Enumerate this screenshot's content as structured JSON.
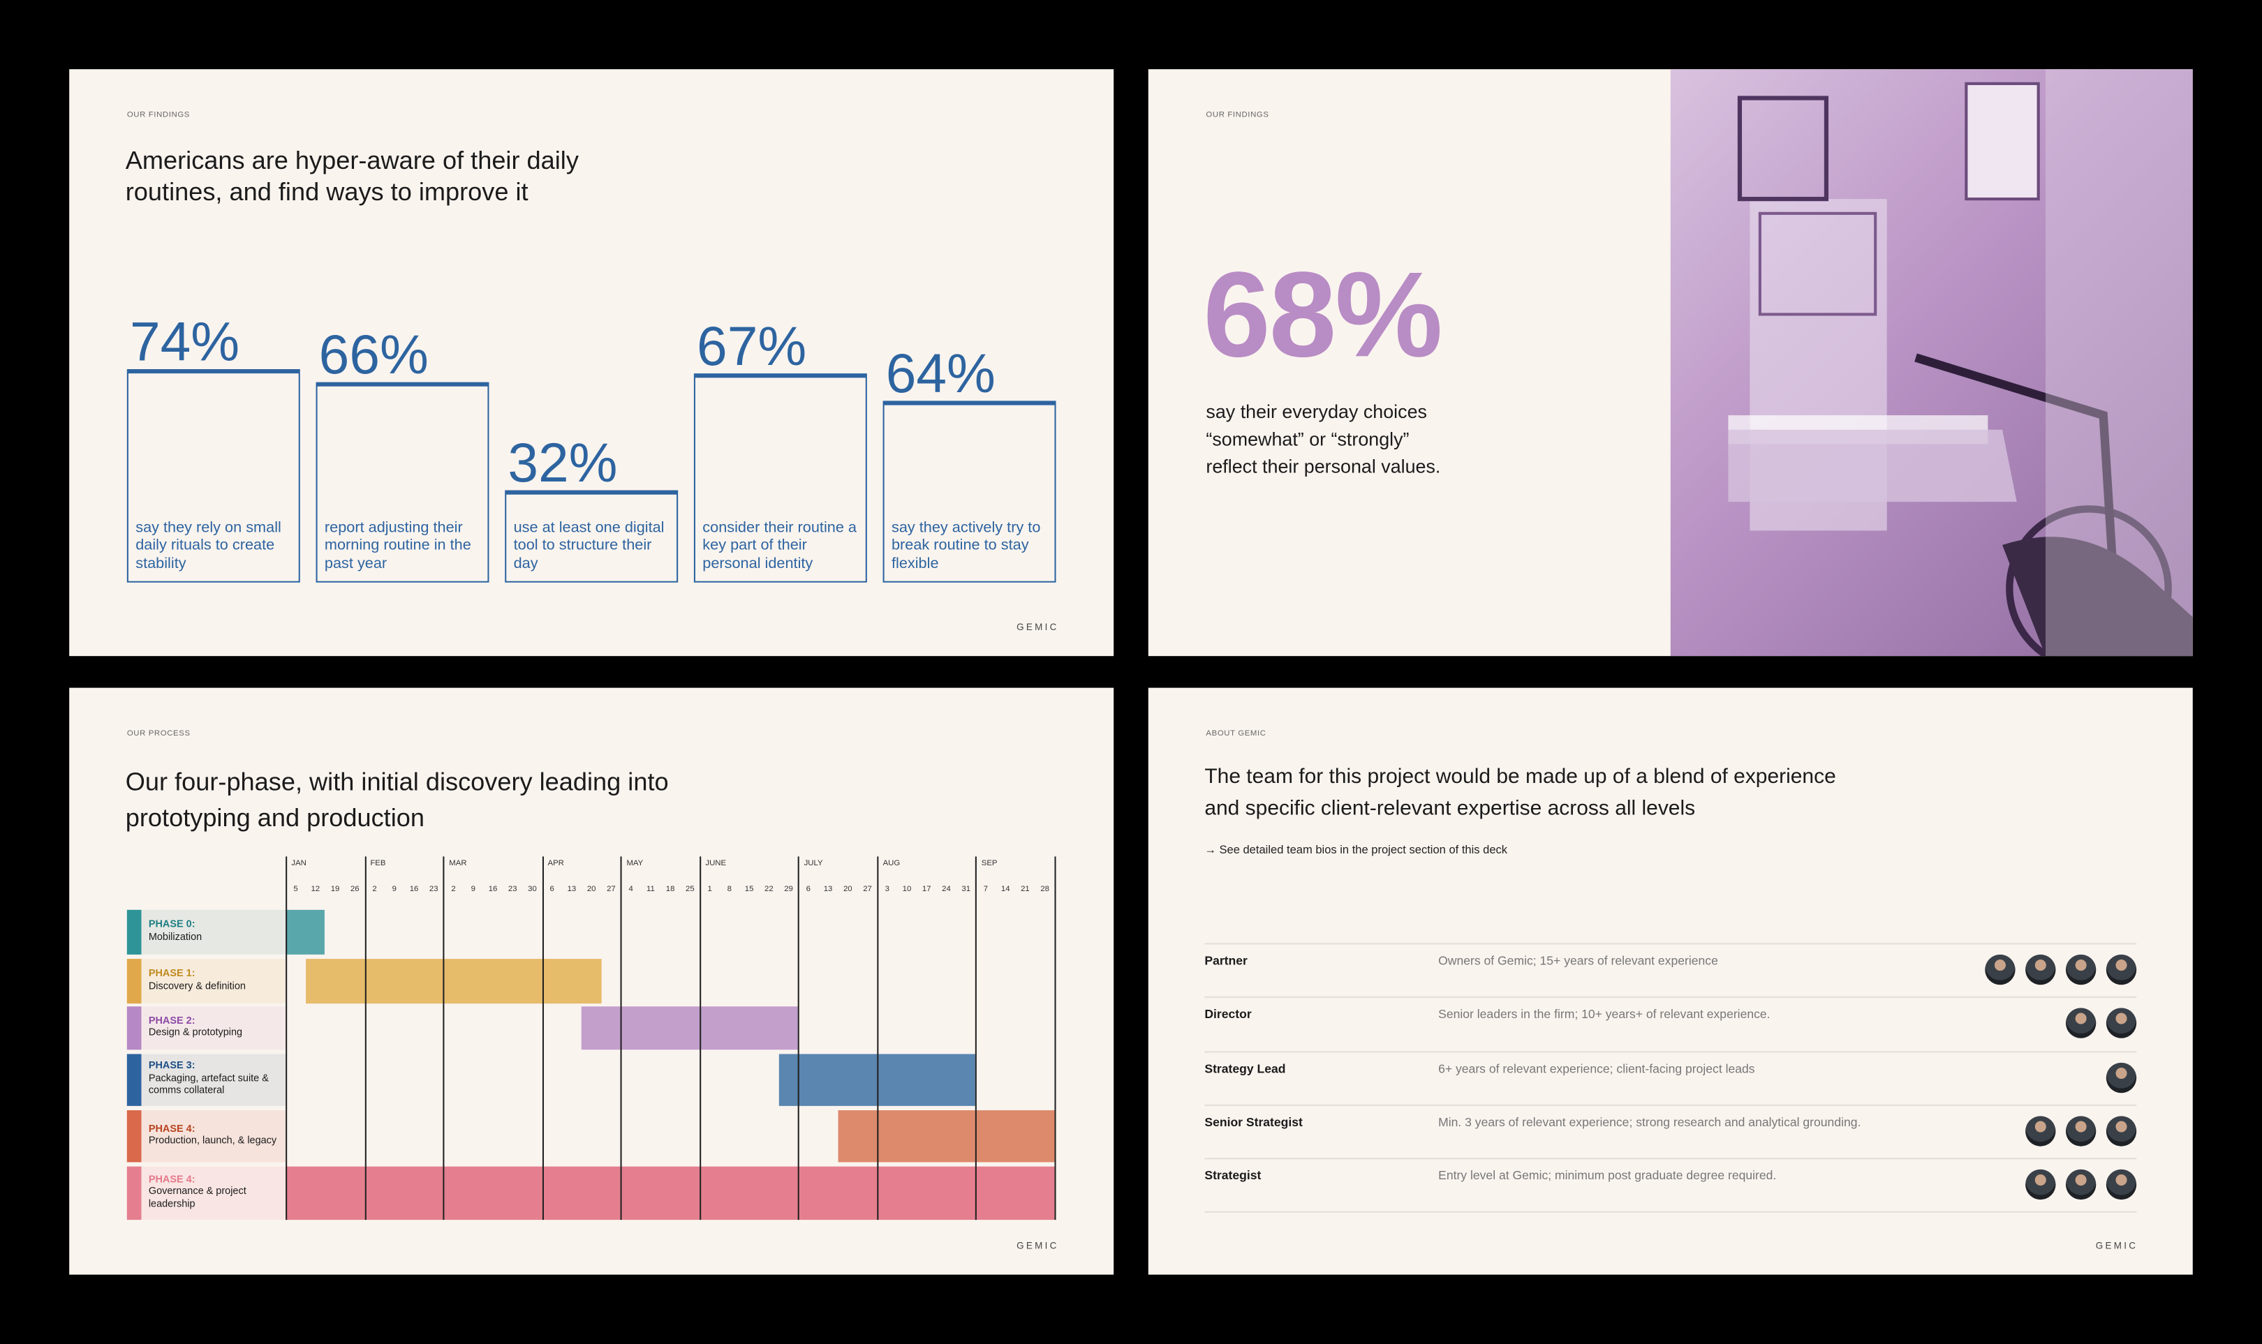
{
  "slide1": {
    "eyebrow": "OUR FINDINGS",
    "title_line1": "Americans are hyper-aware of their daily",
    "title_line2": "routines, and find ways to improve it",
    "stats": [
      {
        "value": "74%",
        "pct": 74,
        "text": "say they rely on small daily rituals to create stability"
      },
      {
        "value": "66%",
        "pct": 66,
        "text": "report adjusting their morning routine in the past year"
      },
      {
        "value": "32%",
        "pct": 32,
        "text": "use at least one digital tool to structure their day"
      },
      {
        "value": "67%",
        "pct": 67,
        "text": "consider their routine a key part of their personal identity"
      },
      {
        "value": "64%",
        "pct": 64,
        "text": "say they actively try to break routine to stay flexible"
      }
    ],
    "logo": "GEMIC"
  },
  "slide2": {
    "eyebrow": "OUR FINDINGS",
    "big_stat": "68%",
    "text_line1": "say their everyday choices",
    "text_line2": "“somewhat” or “strongly”",
    "text_line3": "reflect their personal values.",
    "accent": "#b88cc4"
  },
  "slide3": {
    "eyebrow": "OUR PROCESS",
    "title_line1": "Our four-phase, with initial discovery leading into",
    "title_line2": "prototyping and production",
    "logo": "GEMIC",
    "chart_data": {
      "type": "gantt",
      "unit": "week",
      "months": [
        {
          "label": "JAN",
          "weeks": [
            "5",
            "12",
            "19",
            "26"
          ]
        },
        {
          "label": "FEB",
          "weeks": [
            "2",
            "9",
            "16",
            "23"
          ]
        },
        {
          "label": "MAR",
          "weeks": [
            "2",
            "9",
            "16",
            "23",
            "30"
          ]
        },
        {
          "label": "APR",
          "weeks": [
            "6",
            "13",
            "20",
            "27"
          ]
        },
        {
          "label": "MAY",
          "weeks": [
            "4",
            "11",
            "18",
            "25"
          ]
        },
        {
          "label": "JUNE",
          "weeks": [
            "1",
            "8",
            "15",
            "22",
            "29"
          ]
        },
        {
          "label": "JULY",
          "weeks": [
            "6",
            "13",
            "20",
            "27"
          ]
        },
        {
          "label": "AUG",
          "weeks": [
            "3",
            "10",
            "17",
            "24",
            "31"
          ]
        },
        {
          "label": "SEP",
          "weeks": [
            "7",
            "14",
            "21",
            "28"
          ]
        }
      ],
      "phases": [
        {
          "tag": "PHASE 0:",
          "name": "Mobilization",
          "start": 0,
          "end": 2,
          "color": "#5aa7ab",
          "strip": "#2e9497",
          "tagColor": "#1f7f83",
          "bg": "#e6e8e4"
        },
        {
          "tag": "PHASE 1:",
          "name": "Discovery & definition",
          "start": 1,
          "end": 16,
          "color": "#e6bb6a",
          "strip": "#e0a84a",
          "tagColor": "#c08a1e",
          "bg": "#f7ebdc"
        },
        {
          "tag": "PHASE 2:",
          "name": "Design & prototyping",
          "start": 15,
          "end": 26,
          "color": "#c39fcc",
          "strip": "#b688c4",
          "tagColor": "#8e4aa6",
          "bg": "#f4e9e8"
        },
        {
          "tag": "PHASE 3:",
          "name": "Packaging, artefact suite & comms collateral",
          "start": 25,
          "end": 35,
          "color": "#5a86b0",
          "strip": "#2d64a0",
          "tagColor": "#1f4f86",
          "bg": "#e6e5e4"
        },
        {
          "tag": "PHASE 4:",
          "name": "Production, launch, & legacy",
          "start": 28,
          "end": 39,
          "color": "#dd8a6c",
          "strip": "#d8694a",
          "tagColor": "#b8441f",
          "bg": "#f6e3dc"
        },
        {
          "tag": "PHASE 4:",
          "name": "Governance & project leadership",
          "start": 0,
          "end": 39,
          "color": "#e57f8f",
          "strip": "#e57f8f",
          "tagColor": "#e5788a",
          "bg": "#f9e6e4"
        }
      ]
    }
  },
  "slide4": {
    "eyebrow": "ABOUT GEMIC",
    "title_line1": "The team for this project would be made up of a blend of experience",
    "title_line2": "and specific client-relevant expertise across all levels",
    "link": "→ See detailed team bios in the project section of this deck",
    "rows": [
      {
        "role": "Partner",
        "desc": "Owners of Gemic; 15+ years of relevant experience",
        "people": 4
      },
      {
        "role": "Director",
        "desc": "Senior leaders in the firm; 10+ years+ of relevant experience.",
        "people": 2
      },
      {
        "role": "Strategy Lead",
        "desc": "6+ years of relevant experience; client-facing project leads",
        "people": 1
      },
      {
        "role": "Senior Strategist",
        "desc": "Min. 3 years of relevant experience; strong research and analytical grounding.",
        "people": 3
      },
      {
        "role": "Strategist",
        "desc": "Entry level at Gemic; minimum post graduate degree required.",
        "people": 3
      }
    ],
    "logo": "GEMIC"
  }
}
